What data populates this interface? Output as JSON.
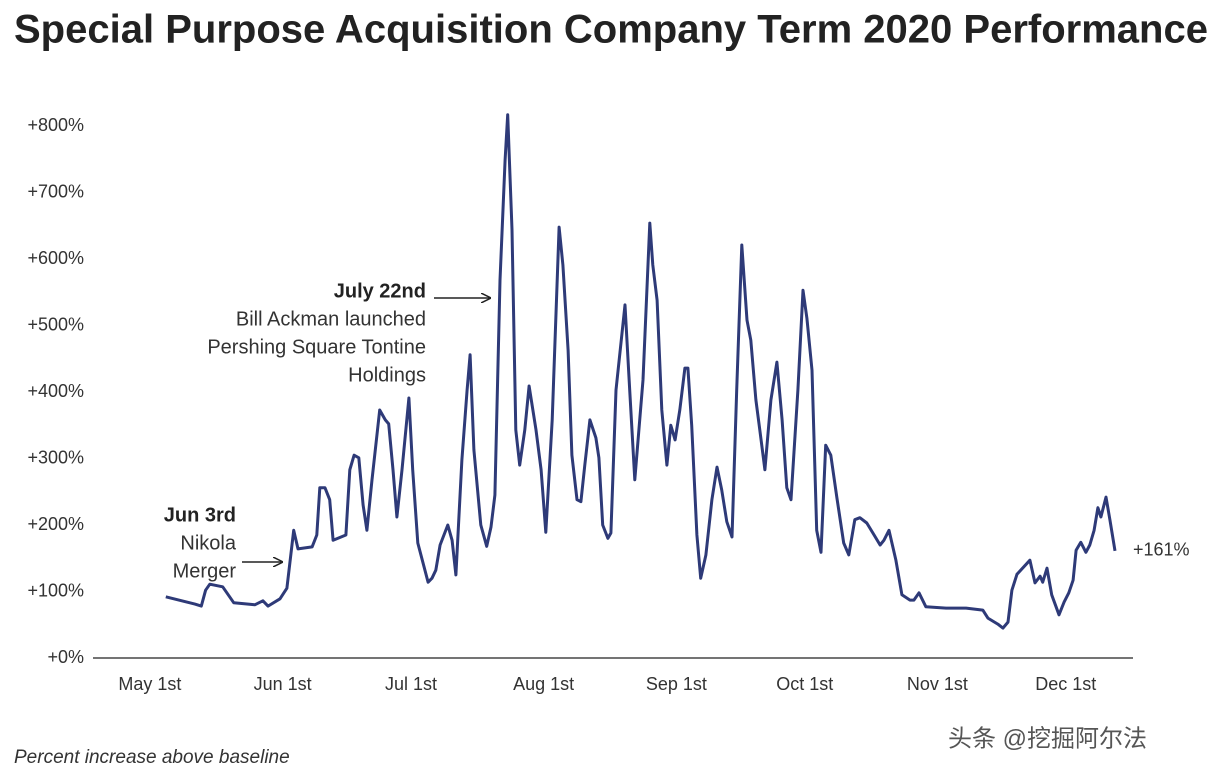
{
  "chart_data": {
    "type": "line",
    "title": "Special Purpose Acquisition Company Term 2020 Performance",
    "footnote": "Percent increase above baseline",
    "watermark": "头条 @挖掘阿尔法",
    "x": [
      3.7,
      10.5,
      12,
      13,
      14,
      17,
      19.6,
      24.5,
      26.4,
      27.6,
      30.4,
      32,
      33.6,
      34.6,
      37.9,
      39,
      39.7,
      40.9,
      42,
      42.8,
      45.8,
      46.7,
      47.7,
      48.8,
      49.8,
      50.7,
      51.9,
      53.7,
      55,
      55.8,
      56.8,
      57.7,
      58.9,
      60.5,
      61.4,
      62.6,
      65,
      65.9,
      66.8,
      67.8,
      69.6,
      70.6,
      71.5,
      72.9,
      74.1,
      74.8,
      75.7,
      77.3,
      78.7,
      79.7,
      80.6,
      81.8,
      83,
      83.6,
      84.6,
      85.5,
      86.4,
      87.6,
      88.6,
      90.2,
      91.4,
      92.5,
      94,
      95.6,
      96.5,
      97.7,
      98.6,
      99.8,
      100.7,
      101.6,
      102.8,
      104.2,
      104.9,
      105.8,
      107,
      107.7,
      108.9,
      111,
      112.1,
      113.3,
      115.2,
      116.8,
      117.5,
      118.5,
      119.6,
      120.8,
      121.7,
      122.7,
      123.8,
      125,
      125.7,
      126.6,
      127.8,
      128.7,
      129.9,
      131.3,
      132.5,
      133.6,
      134.8,
      136,
      137.1,
      138.3,
      139.5,
      140.4,
      141.6,
      142.5,
      143.7,
      145.1,
      146.5,
      147.7,
      148.8,
      149.8,
      151.4,
      152.6,
      153.5,
      154.7,
      155.8,
      156.8,
      157.9,
      159.1,
      160.5,
      162.1,
      163.3,
      164.7,
      165.9,
      167.5,
      169.2,
      170.6,
      171.5,
      172.7,
      174.3,
      175.7,
      177.6,
      178.5,
      179.7,
      181.3,
      186,
      190.7,
      194.6,
      195.8,
      198.1,
      199.3,
      200.5,
      201.4,
      202.6,
      205.6,
      206.8,
      208,
      208.6,
      209.6,
      210.7,
      212.4,
      213.6,
      214.7,
      215.7,
      216.4,
      217.5,
      218.7,
      219.6,
      220.6,
      221.5,
      222.2,
      223.4,
      224.3,
      225.5
    ],
    "series": [
      {
        "color": "#2e3a78",
        "values": [
          92,
          81,
          78,
          102,
          111,
          107,
          83,
          80,
          86,
          78,
          89,
          105,
          192,
          164,
          167,
          185,
          256,
          256,
          238,
          177,
          185,
          283,
          305,
          301,
          230,
          192,
          268,
          373,
          358,
          352,
          283,
          212,
          283,
          391,
          283,
          173,
          114,
          120,
          132,
          170,
          200,
          177,
          125,
          298,
          403,
          456,
          313,
          200,
          168,
          197,
          245,
          568,
          749,
          817,
          644,
          343,
          290,
          343,
          409,
          343,
          283,
          189,
          358,
          648,
          591,
          463,
          305,
          238,
          235,
          290,
          358,
          331,
          301,
          200,
          180,
          188,
          403,
          531,
          403,
          268,
          418,
          654,
          591,
          538,
          373,
          290,
          350,
          328,
          373,
          436,
          436,
          350,
          185,
          120,
          155,
          238,
          287,
          253,
          205,
          182,
          403,
          621,
          508,
          478,
          388,
          343,
          283,
          388,
          445,
          358,
          256,
          238,
          403,
          553,
          511,
          433,
          192,
          159,
          320,
          305,
          242,
          173,
          155,
          208,
          211,
          203,
          185,
          170,
          177,
          192,
          147,
          95,
          87,
          87,
          98,
          77,
          75,
          75,
          72,
          60,
          51,
          45,
          54,
          102,
          126,
          147,
          113,
          123,
          114,
          135,
          95,
          65,
          84,
          98,
          117,
          162,
          174,
          159,
          170,
          192,
          226,
          212,
          242,
          208,
          161
        ]
      }
    ],
    "end_label": {
      "value": 161,
      "label": "+161%"
    },
    "xlim": [
      -13.3,
      229.7
    ],
    "xticks": [
      {
        "value": 0,
        "label": "May 1st"
      },
      {
        "value": 31,
        "label": "Jun 1st"
      },
      {
        "value": 61,
        "label": "Jul 1st"
      },
      {
        "value": 92,
        "label": "Aug 1st"
      },
      {
        "value": 123,
        "label": "Sep 1st"
      },
      {
        "value": 153,
        "label": "Oct 1st"
      },
      {
        "value": 184,
        "label": "Nov 1st"
      },
      {
        "value": 214,
        "label": "Dec 1st"
      }
    ],
    "ylim": [
      0,
      840
    ],
    "yticks": [
      {
        "value": 0,
        "label": "+0%"
      },
      {
        "value": 100,
        "label": "+100%"
      },
      {
        "value": 200,
        "label": "+200%"
      },
      {
        "value": 300,
        "label": "+300%"
      },
      {
        "value": 400,
        "label": "+400%"
      },
      {
        "value": 500,
        "label": "+500%"
      },
      {
        "value": 600,
        "label": "+600%"
      },
      {
        "value": 700,
        "label": "+700%"
      },
      {
        "value": 800,
        "label": "+800%"
      }
    ],
    "annotations": [
      {
        "title": "July 22nd",
        "lines": [
          "Bill Ackman launched",
          "Pershing Square Tontine",
          "Holdings"
        ]
      },
      {
        "title": "Jun 3rd",
        "lines": [
          "Nikola",
          "Merger"
        ]
      }
    ]
  }
}
